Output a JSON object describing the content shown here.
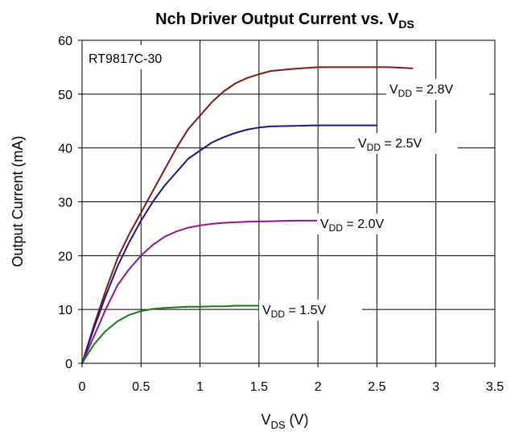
{
  "chart_data": {
    "type": "line",
    "title": {
      "main": "Nch Driver Output Current  vs. V",
      "sub": "DS"
    },
    "xlabel": {
      "main": "V",
      "sub": "DS",
      "suffix": " (V)"
    },
    "ylabel": "Output Current (mA)",
    "annotation": "RT9817C-30",
    "xlim": [
      0,
      3.5
    ],
    "ylim": [
      0,
      60
    ],
    "xticks": [
      "0",
      "0.5",
      "1",
      "1.5",
      "2",
      "2.5",
      "3",
      "3.5"
    ],
    "yticks": [
      "0",
      "10",
      "20",
      "30",
      "40",
      "50",
      "60"
    ],
    "grid": true,
    "series": [
      {
        "name": "VDD = 2.8V",
        "label": {
          "main": "V",
          "sub": "DD",
          "suffix": " = 2.8V"
        },
        "color": "#7B1C1C",
        "x": [
          0,
          0.1,
          0.2,
          0.3,
          0.4,
          0.5,
          0.6,
          0.7,
          0.8,
          0.9,
          1.0,
          1.1,
          1.2,
          1.3,
          1.4,
          1.5,
          1.6,
          1.8,
          2.0,
          2.2,
          2.4,
          2.6,
          2.8
        ],
        "y": [
          0,
          7,
          13.5,
          19.5,
          24,
          28,
          32,
          36,
          40,
          43.5,
          46,
          48.5,
          50.5,
          52,
          53,
          53.7,
          54.3,
          54.7,
          55,
          55,
          55,
          55,
          54.8
        ]
      },
      {
        "name": "VDD = 2.5V",
        "label": {
          "main": "V",
          "sub": "DD",
          "suffix": " = 2.5V"
        },
        "color": "#1A1A80",
        "x": [
          0,
          0.1,
          0.2,
          0.3,
          0.4,
          0.5,
          0.6,
          0.7,
          0.8,
          0.9,
          1.0,
          1.1,
          1.2,
          1.3,
          1.4,
          1.5,
          1.6,
          1.8,
          2.0,
          2.2,
          2.5
        ],
        "y": [
          0,
          6.5,
          12.5,
          18,
          22.5,
          26.5,
          30,
          33,
          35.5,
          38,
          39.5,
          41,
          42,
          42.8,
          43.4,
          43.8,
          44,
          44.1,
          44.2,
          44.2,
          44.2
        ]
      },
      {
        "name": "VDD = 2.0V",
        "label": {
          "main": "V",
          "sub": "DD",
          "suffix": " = 2.0V"
        },
        "color": "#8B1A8B",
        "x": [
          0,
          0.1,
          0.2,
          0.3,
          0.4,
          0.5,
          0.6,
          0.7,
          0.8,
          0.9,
          1.0,
          1.1,
          1.2,
          1.3,
          1.4,
          1.6,
          1.8,
          2.0
        ],
        "y": [
          0,
          5,
          10,
          14.5,
          17.5,
          20,
          22,
          23.5,
          24.5,
          25.2,
          25.6,
          25.9,
          26.1,
          26.2,
          26.3,
          26.4,
          26.5,
          26.5
        ]
      },
      {
        "name": "VDD = 1.5V",
        "label": {
          "main": "V",
          "sub": "DD",
          "suffix": " = 1.5V"
        },
        "color": "#1A7A1A",
        "x": [
          0,
          0.1,
          0.2,
          0.3,
          0.4,
          0.5,
          0.6,
          0.7,
          0.8,
          0.9,
          1.0,
          1.1,
          1.2,
          1.3,
          1.4,
          1.5
        ],
        "y": [
          0,
          3.5,
          6,
          7.8,
          9,
          9.7,
          10.1,
          10.3,
          10.4,
          10.5,
          10.5,
          10.6,
          10.6,
          10.7,
          10.7,
          10.7
        ]
      }
    ]
  }
}
